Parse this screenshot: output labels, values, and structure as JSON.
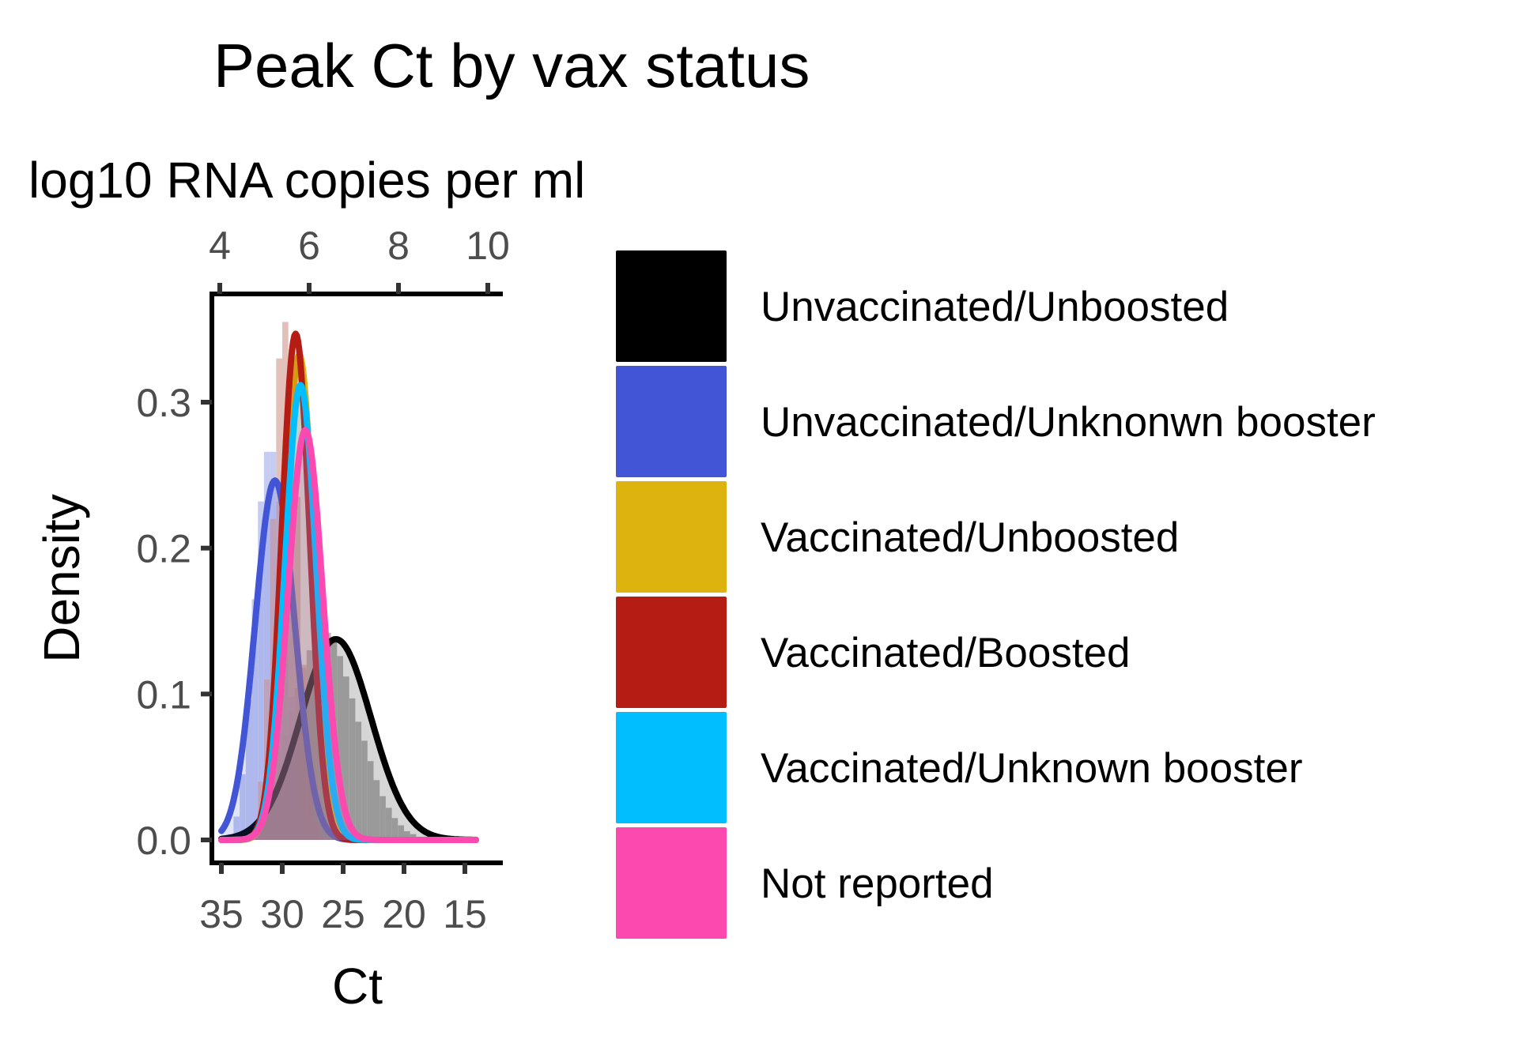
{
  "chart_data": {
    "type": "area",
    "title": "Peak Ct by vax status",
    "xlabel": "Ct",
    "ylabel": "Density",
    "secondary_xlabel": "log10 RNA copies per ml",
    "x_reversed": true,
    "xlim": [
      35.5,
      12.5
    ],
    "ylim": [
      0,
      0.37
    ],
    "x_ticks": [
      35,
      30,
      25,
      20,
      15
    ],
    "x_tick_labels": [
      "35",
      "30",
      "25",
      "20",
      "15"
    ],
    "y_ticks": [
      0,
      0.1,
      0.2,
      0.3
    ],
    "y_tick_labels": [
      "0.0",
      "0.1",
      "0.2",
      "0.3"
    ],
    "secondary_x_ticks": [
      4,
      6,
      8,
      10
    ],
    "secondary_x_tick_labels": [
      "4",
      "6",
      "8",
      "10"
    ],
    "secondary_x_range": [
      4,
      10
    ],
    "grid": false,
    "legend_position": "right",
    "series": [
      {
        "name": "Unvaccinated/Unboosted",
        "color": "#000000",
        "mean": 25.6,
        "sd": 2.9
      },
      {
        "name": "Unvaccinated/Unknonwn booster",
        "color": "#4155d6",
        "mean": 30.6,
        "sd": 1.62
      },
      {
        "name": "Vaccinated/Unboosted",
        "color": "#ddb310",
        "mean": 28.6,
        "sd": 1.2
      },
      {
        "name": "Vaccinated/Boosted",
        "color": "#b51d14",
        "mean": 28.9,
        "sd": 1.15
      },
      {
        "name": "Vaccinated/Unknown booster",
        "color": "#00beff",
        "mean": 28.5,
        "sd": 1.28
      },
      {
        "name": "Not reported",
        "color": "#fb49b0",
        "mean": 28.1,
        "sd": 1.42
      }
    ],
    "histograms": [
      {
        "series": "Unvaccinated/Unboosted",
        "color": "#9e9e9e",
        "bin_width": 0.5,
        "bin_start": 34.5,
        "counts": [
          0.0,
          0.001,
          0.003,
          0.006,
          0.011,
          0.019,
          0.028,
          0.04,
          0.055,
          0.072,
          0.088,
          0.104,
          0.118,
          0.13,
          0.138,
          0.147,
          0.142,
          0.136,
          0.126,
          0.112,
          0.097,
          0.081,
          0.068,
          0.054,
          0.041,
          0.03,
          0.022,
          0.015,
          0.01,
          0.006,
          0.004,
          0.002,
          0.001,
          0.0
        ]
      },
      {
        "series": "Unvaccinated/Unknonwn booster",
        "color": "#b0b8ec",
        "bin_width": 0.5,
        "bin_start": 34.5,
        "counts": [
          0.004,
          0.016,
          0.045,
          0.096,
          0.165,
          0.232,
          0.266,
          0.266,
          0.232,
          0.168,
          0.098,
          0.046,
          0.018,
          0.005,
          0.001,
          0.0
        ]
      },
      {
        "series": "Vaccinated/Boosted",
        "color": "#dba8a2",
        "bin_width": 0.5,
        "bin_start": 33.0,
        "counts": [
          0.002,
          0.01,
          0.04,
          0.11,
          0.22,
          0.33,
          0.355,
          0.32,
          0.235,
          0.12,
          0.045,
          0.012,
          0.002
        ]
      }
    ]
  },
  "legend": {
    "items": [
      {
        "label": "Unvaccinated/Unboosted",
        "color": "#000000"
      },
      {
        "label": "Unvaccinated/Unknonwn booster",
        "color": "#4155d6"
      },
      {
        "label": "Vaccinated/Unboosted",
        "color": "#ddb310"
      },
      {
        "label": "Vaccinated/Boosted",
        "color": "#b51d14"
      },
      {
        "label": "Vaccinated/Unknown booster",
        "color": "#00beff"
      },
      {
        "label": "Not reported",
        "color": "#fb49b0"
      }
    ]
  }
}
